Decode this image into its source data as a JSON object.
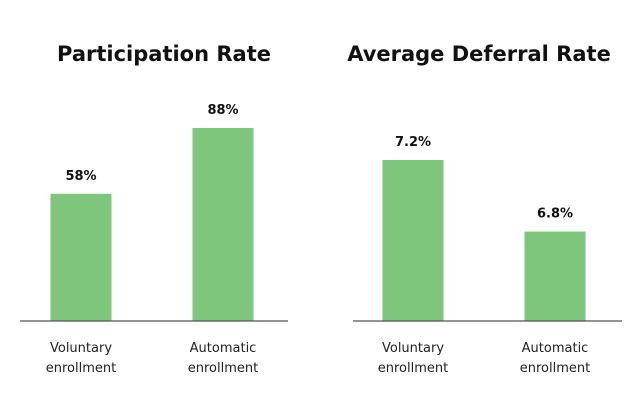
{
  "colors": {
    "bar": "#7dc67b",
    "axis": "#555555",
    "text": "#111111"
  },
  "chart_data": [
    {
      "type": "bar",
      "title": "Participation Rate",
      "categories": [
        [
          "Voluntary",
          "enrollment"
        ],
        [
          "Automatic",
          "enrollment"
        ]
      ],
      "values": [
        58,
        88
      ],
      "value_labels": [
        "58%",
        "88%"
      ],
      "unit": "%",
      "ylim": [
        0,
        100
      ],
      "grid": false,
      "legend": "none"
    },
    {
      "type": "bar",
      "title": "Average Deferral Rate",
      "categories": [
        [
          "Voluntary",
          "enrollment"
        ],
        [
          "Automatic",
          "enrollment"
        ]
      ],
      "values": [
        7.2,
        6.8
      ],
      "value_labels": [
        "7.2%",
        "6.8%"
      ],
      "unit": "%",
      "ylim": [
        6.3,
        7.6
      ],
      "grid": false,
      "legend": "none"
    }
  ]
}
